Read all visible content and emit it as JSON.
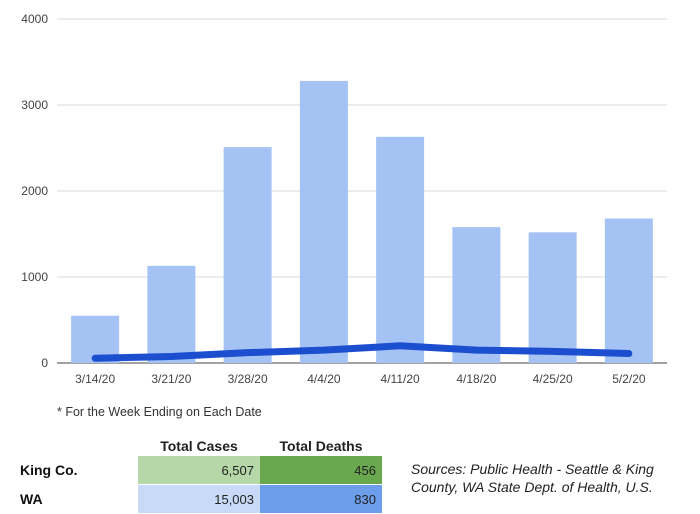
{
  "chart_data": {
    "type": "bar",
    "categories": [
      "3/14/20",
      "3/21/20",
      "3/28/20",
      "4/4/20",
      "4/11/20",
      "4/18/20",
      "4/25/20",
      "5/2/20"
    ],
    "series": [
      {
        "type": "bar",
        "values": [
          550,
          1130,
          2510,
          3280,
          2630,
          1580,
          1520,
          1680
        ],
        "color": "#a4c2f4"
      },
      {
        "type": "line",
        "values": [
          55,
          75,
          120,
          150,
          200,
          150,
          135,
          110
        ],
        "color": "#1c4fd0"
      }
    ],
    "yticks": [
      0,
      1000,
      2000,
      3000,
      4000
    ],
    "ylim": [
      0,
      4000
    ],
    "grid": true
  },
  "footnote": "* For the Week Ending on Each Date",
  "table": {
    "headers": [
      "Total Cases",
      "Total Deaths"
    ],
    "rows": [
      {
        "label": "King Co.",
        "cases": "6,507",
        "deaths": "456",
        "cases_color": "#b6d7a8",
        "deaths_color": "#6aa84f"
      },
      {
        "label": "WA",
        "cases": "15,003",
        "deaths": "830",
        "cases_color": "#c9daf8",
        "deaths_color": "#6d9eeb"
      }
    ]
  },
  "sources": "Sources: Public Health - Seattle & King County, WA State Dept. of Health, U.S."
}
